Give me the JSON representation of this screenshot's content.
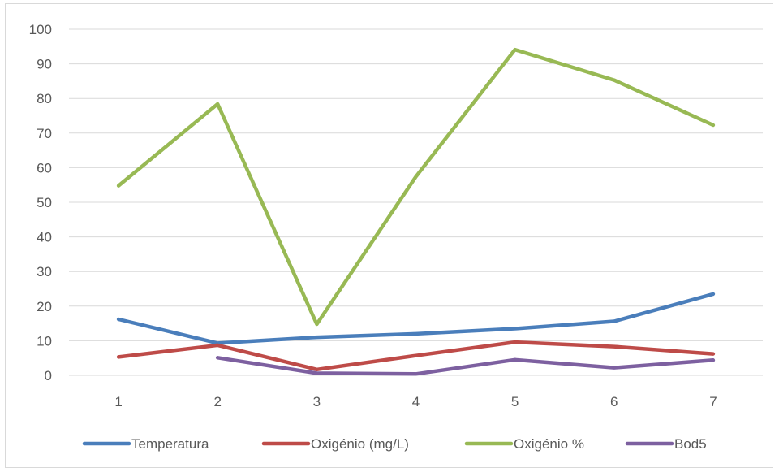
{
  "chart_data": {
    "type": "line",
    "title": "",
    "xlabel": "",
    "ylabel": "",
    "categories": [
      "1",
      "2",
      "3",
      "4",
      "5",
      "6",
      "7"
    ],
    "ylim": [
      0,
      100
    ],
    "yticks": [
      "0",
      "10",
      "20",
      "30",
      "40",
      "50",
      "60",
      "70",
      "80",
      "90",
      "100"
    ],
    "grid": true,
    "legend_position": "bottom",
    "series": [
      {
        "name": "Temperatura",
        "color": "#4a7ebb",
        "values": [
          16.2,
          9.3,
          11.0,
          12.0,
          13.5,
          15.6,
          23.5
        ]
      },
      {
        "name": "Oxigénio (mg/L)",
        "color": "#be4b48",
        "values": [
          5.3,
          8.7,
          1.7,
          5.7,
          9.6,
          8.3,
          6.2
        ]
      },
      {
        "name": "Oxigénio %",
        "color": "#98b954",
        "values": [
          54.8,
          78.4,
          14.8,
          57.4,
          94.1,
          85.3,
          72.3
        ]
      },
      {
        "name": "Bod5",
        "color": "#7d60a0",
        "values": [
          null,
          5.1,
          0.6,
          0.4,
          4.5,
          2.2,
          4.4
        ]
      }
    ]
  }
}
